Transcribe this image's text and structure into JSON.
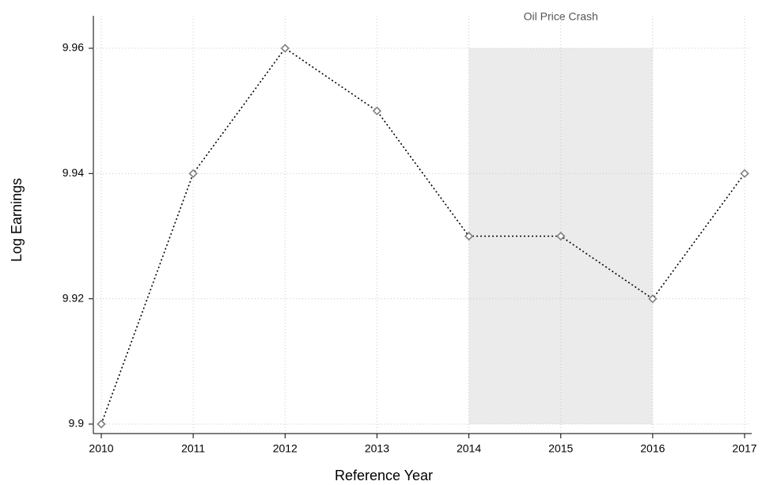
{
  "chart_data": {
    "type": "line",
    "xlabel": "Reference Year",
    "ylabel": "Log Earnings",
    "x": [
      2010,
      2011,
      2012,
      2013,
      2014,
      2015,
      2016,
      2017
    ],
    "series": [
      {
        "color": "#000000",
        "marker_color": "#808080",
        "values": [
          9.9,
          9.94,
          9.96,
          9.95,
          9.93,
          9.93,
          9.92,
          9.94
        ]
      }
    ],
    "xlim": [
      2010,
      2017
    ],
    "xticks": [
      2010,
      2011,
      2012,
      2013,
      2014,
      2015,
      2016,
      2017
    ],
    "ylim": [
      9.9,
      9.96
    ],
    "yticks": [
      9.9,
      9.92,
      9.94,
      9.96
    ],
    "grid": true,
    "shaded_region": {
      "x": [
        2014,
        2016
      ],
      "y": [
        9.9,
        9.96
      ],
      "color": "#ebebeb",
      "label": "Oil Price Crash"
    }
  }
}
